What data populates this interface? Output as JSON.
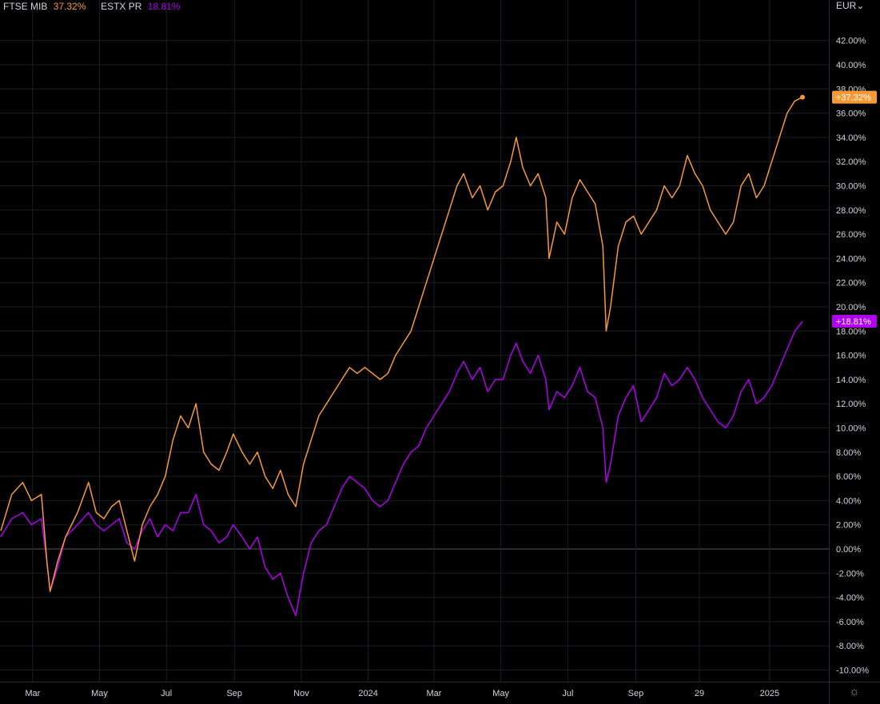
{
  "legend": {
    "series1_name": "FTSE MIB",
    "series1_value": "37.32%",
    "series2_name": "ESTX PR",
    "series2_value": "18.81%"
  },
  "currency": "EUR⌄",
  "settings_icon": "sun-icon",
  "colors": {
    "ftse": "#f79a35",
    "estx": "#b100f0",
    "grid": "#1b1e26",
    "zero": "#55585f",
    "bg": "#000000"
  },
  "chart_data": {
    "type": "line",
    "y_unit": "%",
    "ylim": [
      -11,
      43
    ],
    "y_ticks": [
      42,
      40,
      38,
      36,
      34,
      32,
      30,
      28,
      26,
      24,
      22,
      20,
      18,
      16,
      14,
      12,
      10,
      8,
      6,
      4,
      2,
      0,
      -2,
      -4,
      -6,
      -8,
      -10
    ],
    "y_tick_labels": [
      "42.00%",
      "40.00%",
      "38.00%",
      "36.00%",
      "34.00%",
      "32.00%",
      "30.00%",
      "28.00%",
      "26.00%",
      "24.00%",
      "22.00%",
      "20.00%",
      "18.00%",
      "16.00%",
      "14.00%",
      "12.00%",
      "10.00%",
      "8.00%",
      "6.00%",
      "4.00%",
      "2.00%",
      "0.00%",
      "-2.00%",
      "-4.00%",
      "-6.00%",
      "-8.00%",
      "-10.00%"
    ],
    "x_ticks": [
      "2023-03-01",
      "2023-05-01",
      "2023-07-01",
      "2023-09-01",
      "2023-11-01",
      "2024-01-01",
      "2024-03-01",
      "2024-05-01",
      "2024-07-01",
      "2024-09-01",
      "2024-10-29",
      "2025-01-01"
    ],
    "x_tick_labels": [
      "Mar",
      "May",
      "Jul",
      "Sep",
      "Nov",
      "2024",
      "Mar",
      "May",
      "Jul",
      "Sep",
      "29",
      "2025"
    ],
    "grid": true,
    "series": [
      {
        "name": "FTSE MIB",
        "last_label": "+37.32%",
        "points": [
          [
            "2023-01-31",
            1.5
          ],
          [
            "2023-02-10",
            4.5
          ],
          [
            "2023-02-20",
            5.5
          ],
          [
            "2023-02-28",
            4
          ],
          [
            "2023-03-09",
            4.5
          ],
          [
            "2023-03-14",
            -1
          ],
          [
            "2023-03-17",
            -3.5
          ],
          [
            "2023-03-24",
            -1
          ],
          [
            "2023-03-31",
            1
          ],
          [
            "2023-04-11",
            3
          ],
          [
            "2023-04-21",
            5.5
          ],
          [
            "2023-04-28",
            3
          ],
          [
            "2023-05-05",
            2.5
          ],
          [
            "2023-05-12",
            3.5
          ],
          [
            "2023-05-19",
            4
          ],
          [
            "2023-05-26",
            1.5
          ],
          [
            "2023-06-02",
            -1
          ],
          [
            "2023-06-09",
            2
          ],
          [
            "2023-06-16",
            3.5
          ],
          [
            "2023-06-23",
            4.5
          ],
          [
            "2023-06-30",
            6
          ],
          [
            "2023-07-07",
            9
          ],
          [
            "2023-07-14",
            11
          ],
          [
            "2023-07-21",
            10
          ],
          [
            "2023-07-28",
            12
          ],
          [
            "2023-08-04",
            8
          ],
          [
            "2023-08-11",
            7
          ],
          [
            "2023-08-18",
            6.5
          ],
          [
            "2023-08-25",
            8
          ],
          [
            "2023-08-31",
            9.5
          ],
          [
            "2023-09-08",
            8
          ],
          [
            "2023-09-15",
            7
          ],
          [
            "2023-09-22",
            8
          ],
          [
            "2023-09-29",
            6
          ],
          [
            "2023-10-06",
            5
          ],
          [
            "2023-10-13",
            6.5
          ],
          [
            "2023-10-20",
            4.5
          ],
          [
            "2023-10-27",
            3.5
          ],
          [
            "2023-11-03",
            7
          ],
          [
            "2023-11-10",
            9
          ],
          [
            "2023-11-17",
            11
          ],
          [
            "2023-11-24",
            12
          ],
          [
            "2023-12-01",
            13
          ],
          [
            "2023-12-08",
            14
          ],
          [
            "2023-12-15",
            15
          ],
          [
            "2023-12-22",
            14.5
          ],
          [
            "2023-12-29",
            15
          ],
          [
            "2024-01-05",
            14.5
          ],
          [
            "2024-01-12",
            14
          ],
          [
            "2024-01-19",
            14.5
          ],
          [
            "2024-01-26",
            16
          ],
          [
            "2024-02-02",
            17
          ],
          [
            "2024-02-09",
            18
          ],
          [
            "2024-02-16",
            20
          ],
          [
            "2024-02-23",
            22
          ],
          [
            "2024-03-01",
            24
          ],
          [
            "2024-03-08",
            26
          ],
          [
            "2024-03-15",
            28
          ],
          [
            "2024-03-22",
            30
          ],
          [
            "2024-03-28",
            31
          ],
          [
            "2024-04-05",
            29
          ],
          [
            "2024-04-12",
            30
          ],
          [
            "2024-04-19",
            28
          ],
          [
            "2024-04-26",
            29.5
          ],
          [
            "2024-05-03",
            30
          ],
          [
            "2024-05-10",
            32
          ],
          [
            "2024-05-15",
            34
          ],
          [
            "2024-05-21",
            31.5
          ],
          [
            "2024-05-28",
            30
          ],
          [
            "2024-06-04",
            31
          ],
          [
            "2024-06-11",
            29
          ],
          [
            "2024-06-14",
            24
          ],
          [
            "2024-06-21",
            27
          ],
          [
            "2024-06-28",
            26
          ],
          [
            "2024-07-05",
            29
          ],
          [
            "2024-07-12",
            30.5
          ],
          [
            "2024-07-19",
            29.5
          ],
          [
            "2024-07-26",
            28.5
          ],
          [
            "2024-08-02",
            25
          ],
          [
            "2024-08-05",
            18
          ],
          [
            "2024-08-09",
            20
          ],
          [
            "2024-08-16",
            25
          ],
          [
            "2024-08-23",
            27
          ],
          [
            "2024-08-30",
            27.5
          ],
          [
            "2024-09-06",
            26
          ],
          [
            "2024-09-13",
            27
          ],
          [
            "2024-09-20",
            28
          ],
          [
            "2024-09-27",
            30
          ],
          [
            "2024-10-04",
            29
          ],
          [
            "2024-10-11",
            30
          ],
          [
            "2024-10-18",
            32.5
          ],
          [
            "2024-10-25",
            31
          ],
          [
            "2024-11-01",
            30
          ],
          [
            "2024-11-08",
            28
          ],
          [
            "2024-11-15",
            27
          ],
          [
            "2024-11-22",
            26
          ],
          [
            "2024-11-29",
            27
          ],
          [
            "2024-12-06",
            30
          ],
          [
            "2024-12-13",
            31
          ],
          [
            "2024-12-20",
            29
          ],
          [
            "2024-12-27",
            30
          ],
          [
            "2025-01-03",
            32
          ],
          [
            "2025-01-10",
            34
          ],
          [
            "2025-01-17",
            36
          ],
          [
            "2025-01-24",
            37
          ],
          [
            "2025-01-31",
            37.32
          ]
        ]
      },
      {
        "name": "ESTX PR",
        "last_label": "+18.81%",
        "points": [
          [
            "2023-01-31",
            1
          ],
          [
            "2023-02-10",
            2.5
          ],
          [
            "2023-02-20",
            3
          ],
          [
            "2023-02-28",
            2
          ],
          [
            "2023-03-09",
            2.5
          ],
          [
            "2023-03-14",
            -1
          ],
          [
            "2023-03-17",
            -3.5
          ],
          [
            "2023-03-24",
            -1.5
          ],
          [
            "2023-03-31",
            1
          ],
          [
            "2023-04-11",
            2
          ],
          [
            "2023-04-21",
            3
          ],
          [
            "2023-04-28",
            2
          ],
          [
            "2023-05-05",
            1.5
          ],
          [
            "2023-05-12",
            2
          ],
          [
            "2023-05-19",
            2.5
          ],
          [
            "2023-05-26",
            0.5
          ],
          [
            "2023-06-02",
            0
          ],
          [
            "2023-06-09",
            1.5
          ],
          [
            "2023-06-16",
            2.5
          ],
          [
            "2023-06-23",
            1
          ],
          [
            "2023-06-30",
            2
          ],
          [
            "2023-07-07",
            1.5
          ],
          [
            "2023-07-14",
            3
          ],
          [
            "2023-07-21",
            3
          ],
          [
            "2023-07-28",
            4.5
          ],
          [
            "2023-08-04",
            2
          ],
          [
            "2023-08-11",
            1.5
          ],
          [
            "2023-08-18",
            0.5
          ],
          [
            "2023-08-25",
            1
          ],
          [
            "2023-08-31",
            2
          ],
          [
            "2023-09-08",
            1
          ],
          [
            "2023-09-15",
            0
          ],
          [
            "2023-09-22",
            1
          ],
          [
            "2023-09-29",
            -1.5
          ],
          [
            "2023-10-06",
            -2.5
          ],
          [
            "2023-10-13",
            -2
          ],
          [
            "2023-10-20",
            -4
          ],
          [
            "2023-10-27",
            -5.5
          ],
          [
            "2023-11-03",
            -2
          ],
          [
            "2023-11-10",
            0.5
          ],
          [
            "2023-11-17",
            1.5
          ],
          [
            "2023-11-24",
            2
          ],
          [
            "2023-12-01",
            3.5
          ],
          [
            "2023-12-08",
            5
          ],
          [
            "2023-12-15",
            6
          ],
          [
            "2023-12-22",
            5.5
          ],
          [
            "2023-12-29",
            5
          ],
          [
            "2024-01-05",
            4
          ],
          [
            "2024-01-12",
            3.5
          ],
          [
            "2024-01-19",
            4
          ],
          [
            "2024-01-26",
            5.5
          ],
          [
            "2024-02-02",
            7
          ],
          [
            "2024-02-09",
            8
          ],
          [
            "2024-02-16",
            8.5
          ],
          [
            "2024-02-23",
            10
          ],
          [
            "2024-03-01",
            11
          ],
          [
            "2024-03-08",
            12
          ],
          [
            "2024-03-15",
            13
          ],
          [
            "2024-03-22",
            14.5
          ],
          [
            "2024-03-28",
            15.5
          ],
          [
            "2024-04-05",
            14
          ],
          [
            "2024-04-12",
            15
          ],
          [
            "2024-04-19",
            13
          ],
          [
            "2024-04-26",
            14
          ],
          [
            "2024-05-03",
            14
          ],
          [
            "2024-05-10",
            16
          ],
          [
            "2024-05-15",
            17
          ],
          [
            "2024-05-21",
            15.5
          ],
          [
            "2024-05-28",
            14.5
          ],
          [
            "2024-06-04",
            16
          ],
          [
            "2024-06-11",
            14
          ],
          [
            "2024-06-14",
            11.5
          ],
          [
            "2024-06-21",
            13
          ],
          [
            "2024-06-28",
            12.5
          ],
          [
            "2024-07-05",
            13.5
          ],
          [
            "2024-07-12",
            15
          ],
          [
            "2024-07-19",
            13
          ],
          [
            "2024-07-26",
            12.5
          ],
          [
            "2024-08-02",
            10
          ],
          [
            "2024-08-05",
            5.5
          ],
          [
            "2024-08-09",
            7
          ],
          [
            "2024-08-16",
            11
          ],
          [
            "2024-08-23",
            12.5
          ],
          [
            "2024-08-30",
            13.5
          ],
          [
            "2024-09-06",
            10.5
          ],
          [
            "2024-09-13",
            11.5
          ],
          [
            "2024-09-20",
            12.5
          ],
          [
            "2024-09-27",
            14.5
          ],
          [
            "2024-10-04",
            13.5
          ],
          [
            "2024-10-11",
            14
          ],
          [
            "2024-10-18",
            15
          ],
          [
            "2024-10-25",
            14
          ],
          [
            "2024-11-01",
            12.5
          ],
          [
            "2024-11-08",
            11.5
          ],
          [
            "2024-11-15",
            10.5
          ],
          [
            "2024-11-22",
            10
          ],
          [
            "2024-11-29",
            11
          ],
          [
            "2024-12-06",
            13
          ],
          [
            "2024-12-13",
            14
          ],
          [
            "2024-12-20",
            12
          ],
          [
            "2024-12-27",
            12.5
          ],
          [
            "2025-01-03",
            13.5
          ],
          [
            "2025-01-10",
            15
          ],
          [
            "2025-01-17",
            16.5
          ],
          [
            "2025-01-24",
            18
          ],
          [
            "2025-01-31",
            18.81
          ]
        ]
      }
    ]
  }
}
